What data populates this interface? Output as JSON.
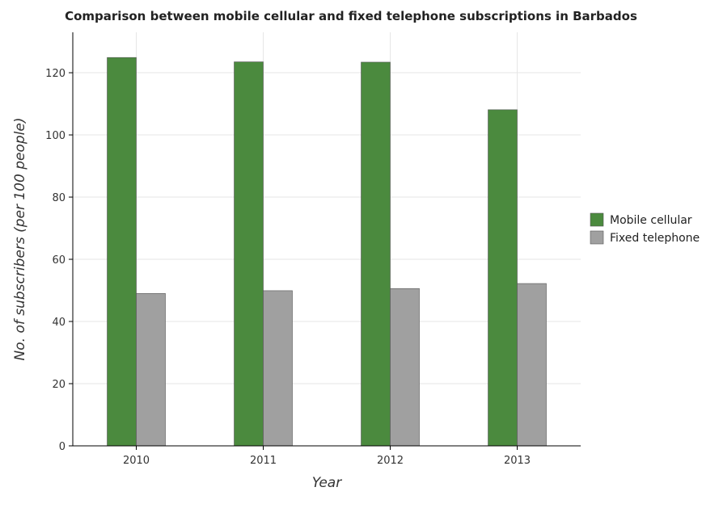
{
  "chart_data": {
    "type": "bar",
    "title": "Comparison between mobile cellular and fixed telephone subscriptions in Barbados",
    "xlabel": "Year",
    "ylabel": "No. of subscribers (per 100 people)",
    "categories": [
      "2010",
      "2011",
      "2012",
      "2013"
    ],
    "series": [
      {
        "name": "Mobile cellular",
        "color": "#4b8a3e",
        "values": [
          124.9,
          123.5,
          123.4,
          108.1
        ]
      },
      {
        "name": "Fixed telephone",
        "color": "#a0a0a0",
        "values": [
          49.0,
          49.9,
          50.6,
          52.2
        ]
      }
    ],
    "ylim": [
      0,
      133
    ],
    "yticks": [
      0,
      20,
      40,
      60,
      80,
      100,
      120
    ],
    "grid": true,
    "legend_position": "right"
  }
}
